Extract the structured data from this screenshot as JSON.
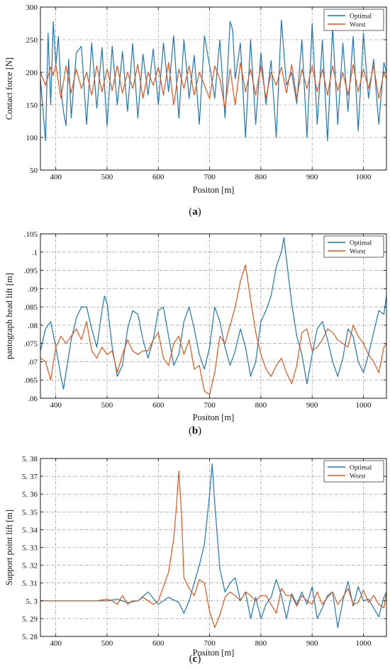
{
  "colors": {
    "optimal": "#1f77b4",
    "worst": "#e0561a",
    "axis": "#000000",
    "grid": "#6b6b6b"
  },
  "chart_data": [
    {
      "type": "line",
      "panel_label": "(a)",
      "xlabel": "Positon [m]",
      "ylabel": "Contact force [N]",
      "xlim": [
        370,
        1045
      ],
      "ylim": [
        50,
        300
      ],
      "xticks": [
        400,
        500,
        600,
        700,
        800,
        900,
        1000
      ],
      "yticks": [
        50,
        100,
        150,
        200,
        250,
        300
      ],
      "grid": true,
      "legend_position": "top-right",
      "series": [
        {
          "name": "Optimal",
          "color": "#1f77b4",
          "x": [
            370,
            380,
            385,
            390,
            395,
            400,
            405,
            410,
            415,
            420,
            425,
            430,
            440,
            450,
            460,
            470,
            480,
            490,
            500,
            510,
            520,
            530,
            540,
            550,
            560,
            570,
            580,
            590,
            600,
            610,
            620,
            630,
            640,
            650,
            660,
            670,
            680,
            690,
            700,
            710,
            720,
            730,
            740,
            745,
            750,
            760,
            770,
            780,
            790,
            800,
            810,
            820,
            830,
            840,
            850,
            860,
            870,
            880,
            890,
            900,
            910,
            920,
            930,
            940,
            950,
            960,
            970,
            980,
            990,
            1000,
            1010,
            1020,
            1030,
            1040,
            1045
          ],
          "y": [
            190,
            95,
            260,
            150,
            278,
            210,
            255,
            175,
            140,
            118,
            220,
            130,
            230,
            240,
            120,
            245,
            145,
            238,
            118,
            240,
            150,
            232,
            140,
            244,
            130,
            228,
            165,
            236,
            150,
            245,
            170,
            256,
            130,
            250,
            160,
            226,
            120,
            256,
            210,
            160,
            250,
            130,
            278,
            265,
            190,
            245,
            100,
            250,
            120,
            230,
            150,
            218,
            100,
            280,
            180,
            200,
            152,
            250,
            100,
            275,
            120,
            250,
            95,
            270,
            120,
            245,
            140,
            255,
            110,
            260,
            160,
            220,
            120,
            215,
            200
          ]
        },
        {
          "name": "Worst",
          "color": "#e0561a",
          "x": [
            370,
            380,
            390,
            395,
            400,
            410,
            420,
            430,
            440,
            450,
            460,
            470,
            480,
            490,
            500,
            510,
            520,
            530,
            540,
            550,
            560,
            570,
            580,
            590,
            600,
            610,
            620,
            630,
            640,
            650,
            660,
            670,
            680,
            690,
            700,
            710,
            720,
            730,
            740,
            750,
            760,
            770,
            780,
            790,
            800,
            810,
            820,
            830,
            840,
            850,
            860,
            870,
            880,
            890,
            900,
            910,
            920,
            930,
            940,
            950,
            960,
            970,
            980,
            990,
            1000,
            1010,
            1020,
            1030,
            1040,
            1045
          ],
          "y": [
            200,
            180,
            208,
            195,
            212,
            160,
            210,
            168,
            205,
            175,
            200,
            165,
            210,
            170,
            205,
            172,
            210,
            168,
            200,
            175,
            212,
            160,
            200,
            180,
            208,
            165,
            215,
            150,
            205,
            175,
            210,
            165,
            200,
            180,
            160,
            210,
            190,
            145,
            205,
            150,
            215,
            170,
            205,
            165,
            210,
            160,
            200,
            180,
            208,
            168,
            212,
            160,
            205,
            175,
            210,
            170,
            205,
            165,
            210,
            172,
            200,
            165,
            212,
            170,
            205,
            175,
            210,
            160,
            200,
            190
          ]
        }
      ]
    },
    {
      "type": "line",
      "panel_label": "(b)",
      "xlabel": "Positon [m]",
      "ylabel": "pantograph head lift [m]",
      "xlim": [
        370,
        1045
      ],
      "ylim": [
        0.06,
        0.105
      ],
      "xticks": [
        400,
        500,
        600,
        700,
        800,
        900,
        1000
      ],
      "yticks": [
        0.06,
        0.065,
        0.07,
        0.075,
        0.08,
        0.085,
        0.09,
        0.095,
        0.1,
        0.105
      ],
      "grid": true,
      "legend_position": "top-right",
      "series": [
        {
          "name": "Optimal",
          "color": "#1f77b4",
          "x": [
            370,
            380,
            390,
            400,
            410,
            415,
            420,
            430,
            440,
            450,
            460,
            470,
            480,
            490,
            495,
            500,
            510,
            520,
            530,
            540,
            550,
            560,
            570,
            580,
            590,
            600,
            610,
            620,
            630,
            640,
            650,
            660,
            670,
            680,
            690,
            700,
            710,
            720,
            730,
            740,
            750,
            760,
            770,
            780,
            790,
            800,
            810,
            820,
            830,
            840,
            845,
            850,
            860,
            870,
            880,
            890,
            900,
            910,
            920,
            930,
            940,
            950,
            960,
            970,
            980,
            990,
            1000,
            1010,
            1020,
            1030,
            1040,
            1045
          ],
          "y": [
            0.073,
            0.079,
            0.081,
            0.074,
            0.066,
            0.0625,
            0.067,
            0.076,
            0.082,
            0.085,
            0.085,
            0.079,
            0.074,
            0.084,
            0.088,
            0.086,
            0.074,
            0.066,
            0.069,
            0.079,
            0.084,
            0.083,
            0.076,
            0.071,
            0.076,
            0.084,
            0.085,
            0.077,
            0.069,
            0.072,
            0.081,
            0.085,
            0.079,
            0.072,
            0.068,
            0.074,
            0.085,
            0.081,
            0.074,
            0.069,
            0.073,
            0.079,
            0.074,
            0.066,
            0.07,
            0.081,
            0.084,
            0.088,
            0.096,
            0.1,
            0.104,
            0.098,
            0.086,
            0.077,
            0.072,
            0.064,
            0.072,
            0.079,
            0.081,
            0.076,
            0.07,
            0.066,
            0.071,
            0.079,
            0.077,
            0.07,
            0.067,
            0.072,
            0.078,
            0.084,
            0.083,
            0.088
          ]
        },
        {
          "name": "Worst",
          "color": "#e0561a",
          "x": [
            370,
            380,
            390,
            400,
            410,
            420,
            430,
            440,
            450,
            460,
            470,
            480,
            490,
            500,
            510,
            520,
            530,
            540,
            550,
            560,
            570,
            580,
            590,
            600,
            610,
            620,
            630,
            640,
            650,
            660,
            670,
            680,
            690,
            700,
            710,
            720,
            730,
            740,
            750,
            760,
            770,
            780,
            790,
            800,
            810,
            820,
            830,
            840,
            850,
            860,
            870,
            880,
            890,
            900,
            910,
            920,
            930,
            940,
            950,
            960,
            970,
            980,
            990,
            1000,
            1010,
            1020,
            1030,
            1040,
            1045
          ],
          "y": [
            0.071,
            0.07,
            0.065,
            0.074,
            0.077,
            0.075,
            0.077,
            0.079,
            0.076,
            0.081,
            0.073,
            0.071,
            0.074,
            0.072,
            0.073,
            0.067,
            0.072,
            0.076,
            0.073,
            0.072,
            0.073,
            0.073,
            0.076,
            0.078,
            0.071,
            0.069,
            0.075,
            0.077,
            0.072,
            0.076,
            0.068,
            0.069,
            0.062,
            0.061,
            0.067,
            0.077,
            0.075,
            0.08,
            0.085,
            0.092,
            0.0965,
            0.087,
            0.078,
            0.072,
            0.068,
            0.066,
            0.069,
            0.071,
            0.067,
            0.064,
            0.069,
            0.078,
            0.079,
            0.073,
            0.074,
            0.076,
            0.079,
            0.078,
            0.076,
            0.075,
            0.074,
            0.08,
            0.077,
            0.075,
            0.072,
            0.07,
            0.067,
            0.074,
            0.075
          ]
        }
      ]
    },
    {
      "type": "line",
      "panel_label": "(c)",
      "xlabel": "Positon [m]",
      "ylabel": "Support point lift [m]",
      "xlim": [
        370,
        1045
      ],
      "ylim": [
        5.28,
        5.38
      ],
      "xticks": [
        400,
        500,
        600,
        700,
        800,
        900,
        1000
      ],
      "yticks": [
        5.28,
        5.29,
        5.3,
        5.31,
        5.32,
        5.33,
        5.34,
        5.35,
        5.36,
        5.37,
        5.38
      ],
      "ytick_labels": [
        "5. 28",
        "5. 29",
        "5. 3",
        "5. 31",
        "5. 32",
        "5. 33",
        "5. 34",
        "5. 35",
        "5. 36",
        "5. 37",
        "5. 38"
      ],
      "grid": true,
      "legend_position": "top-right",
      "series": [
        {
          "name": "Optimal",
          "color": "#1f77b4",
          "x": [
            370,
            400,
            450,
            480,
            500,
            520,
            540,
            560,
            580,
            600,
            620,
            640,
            650,
            660,
            670,
            680,
            690,
            700,
            705,
            710,
            720,
            730,
            740,
            750,
            760,
            770,
            780,
            790,
            800,
            810,
            820,
            830,
            840,
            850,
            860,
            870,
            880,
            890,
            900,
            910,
            920,
            930,
            940,
            950,
            960,
            970,
            980,
            990,
            1000,
            1010,
            1020,
            1030,
            1040,
            1045
          ],
          "y": [
            5.3,
            5.3,
            5.3,
            5.3,
            5.3,
            5.301,
            5.299,
            5.3,
            5.305,
            5.298,
            5.302,
            5.299,
            5.293,
            5.3,
            5.31,
            5.32,
            5.332,
            5.36,
            5.377,
            5.355,
            5.318,
            5.305,
            5.31,
            5.313,
            5.3,
            5.305,
            5.29,
            5.302,
            5.29,
            5.298,
            5.302,
            5.312,
            5.303,
            5.29,
            5.304,
            5.298,
            5.305,
            5.298,
            5.308,
            5.29,
            5.296,
            5.303,
            5.305,
            5.285,
            5.3,
            5.311,
            5.297,
            5.308,
            5.3,
            5.301,
            5.296,
            5.291,
            5.302,
            5.305
          ]
        },
        {
          "name": "Worst",
          "color": "#e0561a",
          "x": [
            370,
            400,
            450,
            480,
            500,
            510,
            520,
            530,
            540,
            550,
            560,
            570,
            580,
            590,
            600,
            610,
            620,
            630,
            635,
            640,
            645,
            650,
            660,
            670,
            680,
            690,
            700,
            710,
            720,
            730,
            740,
            750,
            760,
            770,
            780,
            790,
            800,
            810,
            820,
            830,
            840,
            850,
            860,
            870,
            880,
            890,
            900,
            910,
            920,
            930,
            940,
            950,
            960,
            970,
            980,
            990,
            1000,
            1010,
            1020,
            1030,
            1040,
            1045
          ],
          "y": [
            5.3,
            5.3,
            5.3,
            5.3,
            5.301,
            5.3,
            5.298,
            5.303,
            5.298,
            5.3,
            5.3,
            5.302,
            5.3,
            5.298,
            5.3,
            5.308,
            5.316,
            5.335,
            5.352,
            5.373,
            5.35,
            5.313,
            5.307,
            5.303,
            5.312,
            5.31,
            5.294,
            5.285,
            5.292,
            5.302,
            5.305,
            5.303,
            5.3,
            5.305,
            5.303,
            5.3,
            5.303,
            5.303,
            5.298,
            5.293,
            5.307,
            5.303,
            5.303,
            5.297,
            5.303,
            5.3,
            5.298,
            5.305,
            5.298,
            5.302,
            5.305,
            5.298,
            5.302,
            5.307,
            5.298,
            5.299,
            5.306,
            5.299,
            5.303,
            5.298,
            5.296,
            5.305
          ]
        }
      ]
    }
  ]
}
